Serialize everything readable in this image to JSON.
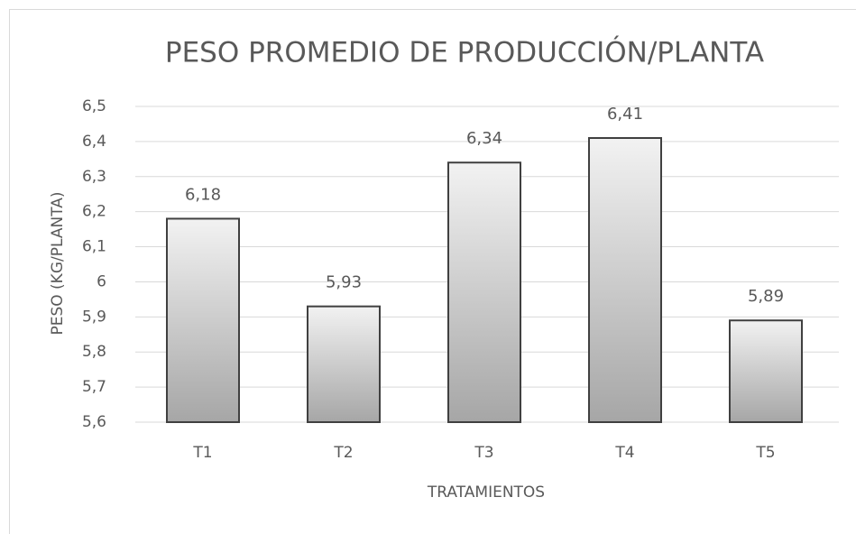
{
  "chart_data": {
    "type": "bar",
    "title": "PESO PROMEDIO DE PRODUCCIÓN/PLANTA",
    "x_label": "TRATAMIENTOS",
    "y_label": "PESO (KG/PLANTA)",
    "categories": [
      "T1",
      "T2",
      "T3",
      "T4",
      "T5"
    ],
    "values": [
      6.18,
      5.93,
      6.34,
      6.41,
      5.89
    ],
    "value_labels": [
      "6,18",
      "5,93",
      "6,34",
      "6,41",
      "5,89"
    ],
    "color": "#d9d9d9",
    "ylim": [
      5.6,
      6.5
    ],
    "yticks": [
      {
        "value": 5.6,
        "label": "5,6"
      },
      {
        "value": 5.7,
        "label": "5,7"
      },
      {
        "value": 5.8,
        "label": "5,8"
      },
      {
        "value": 5.9,
        "label": "5,9"
      },
      6,
      {
        "value": 6.1,
        "label": "6,1"
      },
      {
        "value": 6.2,
        "label": "6,2"
      },
      {
        "value": 6.3,
        "label": "6,3"
      },
      {
        "value": 6.4,
        "label": "6,4"
      },
      {
        "value": 6.5,
        "label": "6,5"
      }
    ],
    "grid": true
  }
}
